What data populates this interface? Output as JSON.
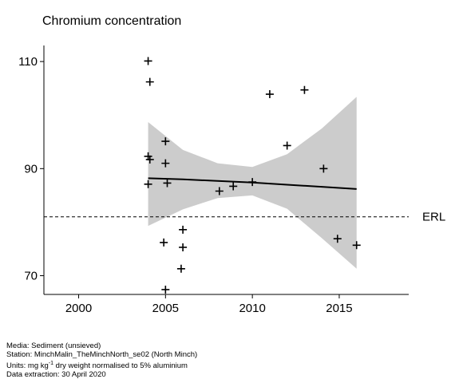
{
  "chart_data": {
    "type": "scatter",
    "title": "Chromium concentration",
    "xlabel": "",
    "ylabel": "",
    "xlim": [
      1998,
      2019
    ],
    "ylim": [
      66.5,
      113
    ],
    "x_ticks": [
      2000,
      2005,
      2010,
      2015
    ],
    "y_ticks": [
      70,
      90,
      110
    ],
    "grid": false,
    "points": [
      {
        "x": 2004.0,
        "y": 110.1
      },
      {
        "x": 2004.1,
        "y": 106.2
      },
      {
        "x": 2004.0,
        "y": 92.3
      },
      {
        "x": 2004.1,
        "y": 91.7
      },
      {
        "x": 2004.0,
        "y": 87.1
      },
      {
        "x": 2005.0,
        "y": 95.1
      },
      {
        "x": 2005.0,
        "y": 91.0
      },
      {
        "x": 2005.1,
        "y": 87.3
      },
      {
        "x": 2004.9,
        "y": 76.2
      },
      {
        "x": 2005.0,
        "y": 67.4
      },
      {
        "x": 2006.0,
        "y": 78.6
      },
      {
        "x": 2006.0,
        "y": 75.3
      },
      {
        "x": 2005.9,
        "y": 71.3
      },
      {
        "x": 2008.1,
        "y": 85.8
      },
      {
        "x": 2008.9,
        "y": 86.7
      },
      {
        "x": 2010.0,
        "y": 87.5
      },
      {
        "x": 2011.0,
        "y": 103.9
      },
      {
        "x": 2012.0,
        "y": 94.3
      },
      {
        "x": 2013.0,
        "y": 104.7
      },
      {
        "x": 2014.1,
        "y": 90.0
      },
      {
        "x": 2014.9,
        "y": 76.9
      },
      {
        "x": 2016.0,
        "y": 75.7
      }
    ],
    "trend": {
      "x": [
        2004,
        2006,
        2008,
        2010,
        2012,
        2014,
        2016
      ],
      "y": [
        88.2,
        88.0,
        87.7,
        87.4,
        87.0,
        86.6,
        86.2
      ],
      "lower": [
        79.3,
        82.4,
        84.5,
        85.0,
        82.5,
        77.0,
        71.3
      ],
      "upper": [
        98.7,
        93.5,
        91.0,
        90.3,
        92.7,
        97.5,
        103.4
      ]
    },
    "reference_line": {
      "label": "ERL",
      "y": 81.0
    }
  },
  "footer": {
    "media": "Media: Sediment (unsieved)",
    "station": "Station: MinchMalin_TheMinchNorth_se02 (North Minch)",
    "units_prefix": "Units:  mg kg",
    "units_sup": "-1",
    "units_suffix": " dry weight normalised to 5% aluminium",
    "extraction": "Data extraction: 30 April 2020"
  },
  "colors": {
    "band": "#cccccc",
    "line": "#000000",
    "marker": "#000000"
  }
}
